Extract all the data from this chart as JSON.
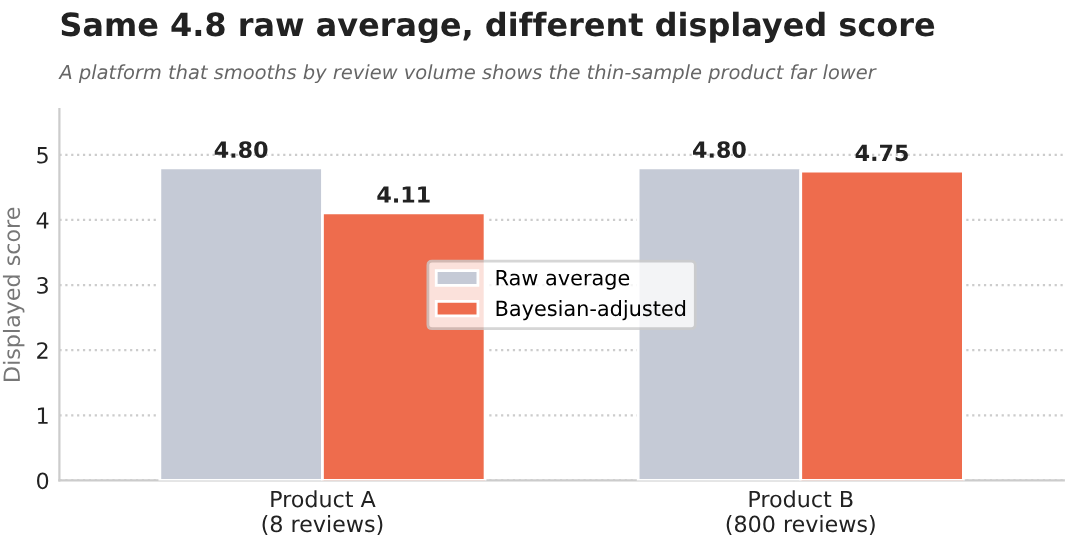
{
  "chart_data": {
    "type": "bar",
    "title": "Same 4.8 raw average, different displayed score",
    "subtitle": "A platform that smooths by review volume shows the thin-sample product far lower",
    "ylabel": "Displayed score",
    "categories": [
      "Product A\n(8 reviews)",
      "Product B\n(800 reviews)"
    ],
    "series": [
      {
        "name": "Raw average",
        "color": "#c5cad6",
        "values": [
          4.8,
          4.8
        ],
        "value_labels": [
          "4.80",
          "4.80"
        ]
      },
      {
        "name": "Bayesian-adjusted",
        "color": "#ee6c4d",
        "values": [
          4.11,
          4.75
        ],
        "value_labels": [
          "4.11",
          "4.75"
        ]
      }
    ],
    "ylim": [
      0,
      5.7
    ],
    "yticks": [
      0,
      1,
      2,
      3,
      4,
      5
    ],
    "grid": "y",
    "legend": "center"
  }
}
